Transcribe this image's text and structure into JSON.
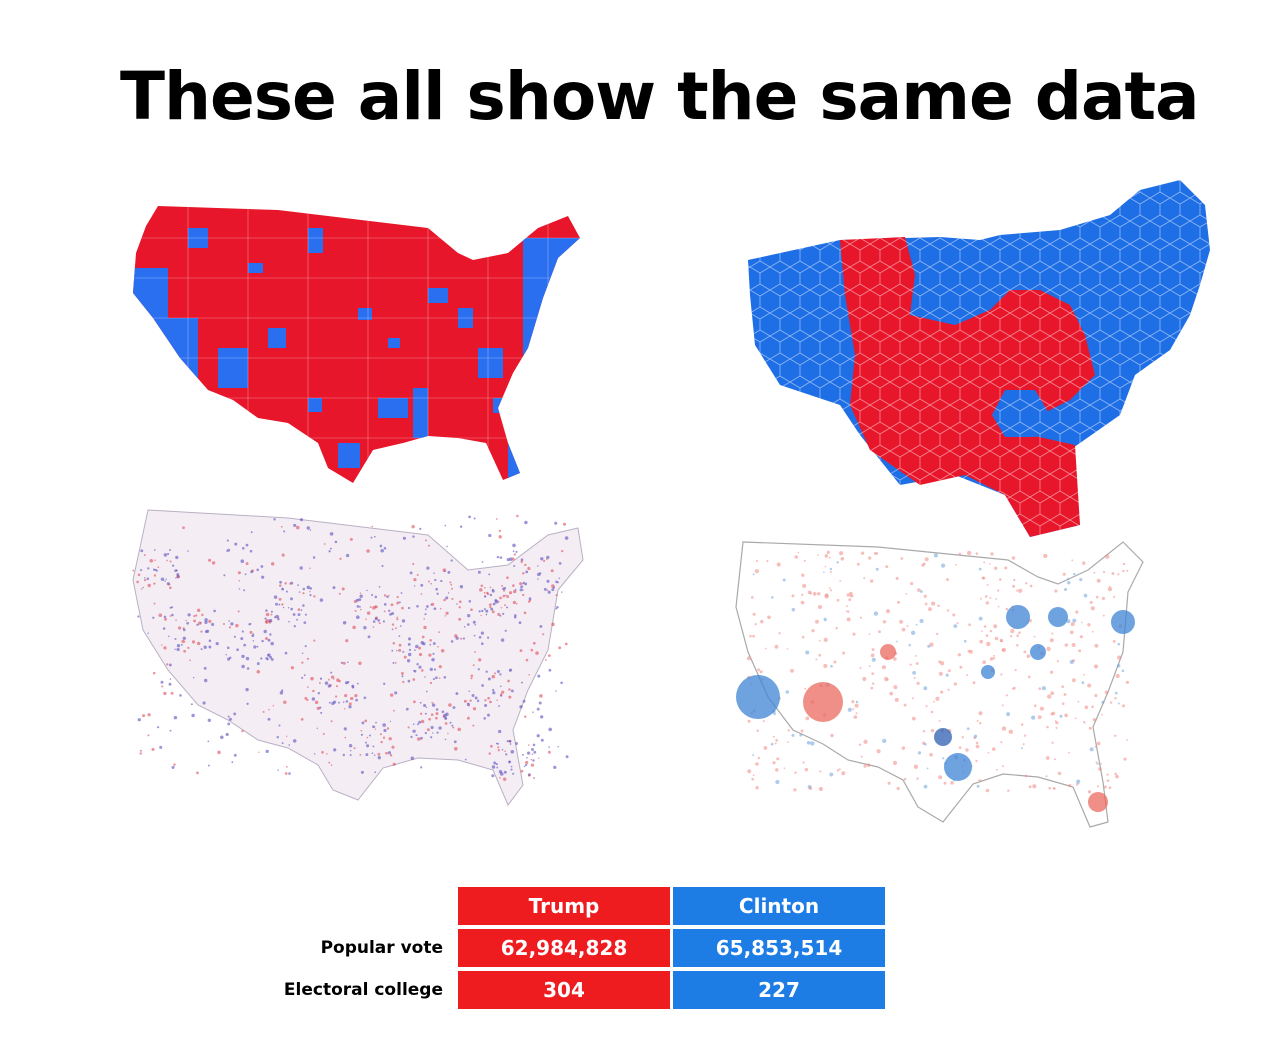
{
  "title": "These all show the same data",
  "colors": {
    "trump": "#ef1c1f",
    "clinton": "#1e7de4"
  },
  "maps": [
    {
      "id": "county-choropleth"
    },
    {
      "id": "hexagon-cartogram"
    },
    {
      "id": "dot-density"
    },
    {
      "id": "proportional-symbol"
    }
  ],
  "results": {
    "candidates": [
      "Trump",
      "Clinton"
    ],
    "rows": [
      {
        "label": "Popular vote",
        "trump": "62,984,828",
        "clinton": "65,853,514"
      },
      {
        "label": "Electoral college",
        "trump": "304",
        "clinton": "227"
      }
    ]
  }
}
